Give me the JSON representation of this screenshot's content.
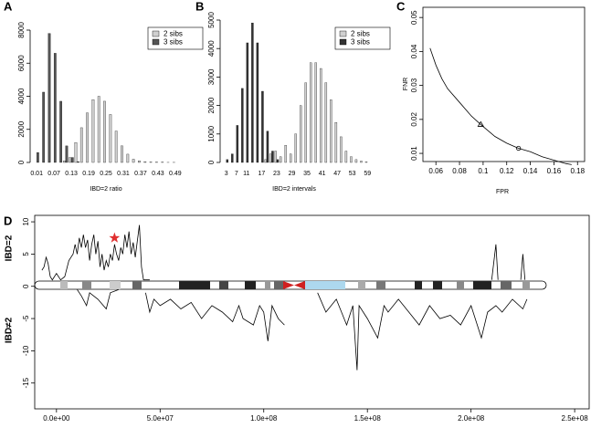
{
  "chart_data": [
    {
      "type": "bar",
      "label": "A",
      "x_label": "IBD=2 ratio",
      "legend": "top-right",
      "categories": [
        0.01,
        null,
        null,
        0.07,
        null,
        null,
        0.13,
        null,
        null,
        0.19,
        null,
        null,
        0.25,
        null,
        null,
        0.31,
        null,
        null,
        0.37,
        null,
        null,
        0.43,
        null,
        null,
        0.49
      ],
      "series": [
        {
          "name": "2 sibs",
          "color": "#d0d0d0",
          "values": [
            0,
            0,
            0,
            0,
            0,
            100,
            300,
            1200,
            2100,
            3000,
            3800,
            4000,
            3700,
            2900,
            1900,
            1000,
            500,
            200,
            100,
            50,
            30,
            20,
            10,
            5,
            5
          ]
        },
        {
          "name": "3 sibs",
          "color": "#555555",
          "values": [
            600,
            4250,
            7800,
            6600,
            3700,
            1000,
            300,
            50,
            0,
            0,
            0,
            0,
            0,
            0,
            0,
            0,
            0,
            0,
            0,
            0,
            0,
            0,
            0,
            0,
            0
          ]
        }
      ],
      "ylim": [
        0,
        8000
      ],
      "yticks": [
        0,
        2000,
        4000,
        6000,
        8000
      ]
    },
    {
      "type": "bar",
      "label": "B",
      "x_label": "IBD=2 intervals",
      "legend": "top-right",
      "categories": [
        3,
        null,
        7,
        null,
        11,
        null,
        null,
        17,
        null,
        null,
        23,
        null,
        null,
        29,
        null,
        null,
        35,
        null,
        null,
        41,
        null,
        null,
        47,
        null,
        null,
        53,
        null,
        null,
        59
      ],
      "series": [
        {
          "name": "2 sibs",
          "color": "#d0d0d0",
          "values": [
            0,
            0,
            0,
            0,
            0,
            0,
            0,
            0,
            100,
            300,
            400,
            200,
            600,
            300,
            1000,
            2000,
            2800,
            3500,
            3500,
            3300,
            2800,
            2200,
            1400,
            900,
            400,
            200,
            100,
            50,
            20
          ]
        },
        {
          "name": "3 sibs",
          "color": "#333333",
          "values": [
            100,
            300,
            1300,
            2600,
            4200,
            4900,
            4200,
            2500,
            1100,
            400,
            100,
            0,
            0,
            0,
            0,
            0,
            0,
            0,
            0,
            0,
            0,
            0,
            0,
            0,
            0,
            0,
            0,
            0,
            0
          ]
        }
      ],
      "ylim": [
        0,
        5000
      ],
      "yticks": [
        0,
        1000,
        2000,
        3000,
        4000,
        5000
      ]
    },
    {
      "type": "line",
      "label": "C",
      "x_label": "FPR",
      "y_label": "FNR",
      "series": [
        {
          "color": "#000000",
          "x": [
            0.055,
            0.06,
            0.065,
            0.07,
            0.08,
            0.09,
            0.098,
            0.11,
            0.12,
            0.13,
            0.14,
            0.15,
            0.16,
            0.17,
            0.175
          ],
          "values": [
            0.041,
            0.036,
            0.032,
            0.029,
            0.025,
            0.021,
            0.0185,
            0.015,
            0.013,
            0.0115,
            0.0105,
            0.009,
            0.008,
            0.007,
            0.0067
          ]
        }
      ],
      "points": [
        {
          "x": 0.098,
          "y": 0.0185,
          "shape": "triangle"
        },
        {
          "x": 0.13,
          "y": 0.0115,
          "shape": "circle"
        }
      ],
      "xlim": [
        0.049,
        0.186
      ],
      "xticks": [
        0.06,
        0.08,
        0.1,
        0.12,
        0.14,
        0.16,
        0.18
      ],
      "ylim": [
        0.0076,
        0.053
      ],
      "yticks": [
        0.01,
        0.02,
        0.03,
        0.04,
        0.05
      ]
    },
    {
      "type": "line",
      "label": "D",
      "y_labels": [
        "IBD=2",
        "IBD≠2"
      ],
      "series": [
        {
          "color": "#000000",
          "x": [
            -7000000.0,
            -6000000.0,
            -5000000.0,
            -4000000.0,
            -3000000.0,
            -2000000.0,
            0,
            2000000.0,
            4000000.0,
            6000000.0,
            8000000.0,
            9000000.0,
            10000000.0,
            11000000.0,
            12000000.0,
            13000000.0,
            14000000.0,
            15000000.0,
            16000000.0,
            17000000.0,
            18000000.0,
            19000000.0,
            20000000.0,
            21000000.0,
            22000000.0,
            23000000.0,
            24000000.0,
            25000000.0,
            26000000.0,
            27000000.0,
            28000000.0,
            29000000.0,
            30000000.0,
            31000000.0,
            32000000.0,
            33000000.0,
            34000000.0,
            35000000.0,
            36000000.0,
            37000000.0,
            38000000.0,
            39000000.0,
            40000000.0,
            41000000.0,
            42000000.0,
            45000000.0,
            100000000.0,
            210000000.0,
            212000000.0,
            213000000.0,
            218000000.0,
            224000000.0,
            225000000.0,
            226000000.0
          ],
          "values": [
            2.5,
            3,
            4.5,
            3.5,
            1.5,
            1,
            2,
            1,
            1.5,
            4,
            5,
            6.5,
            5,
            7.5,
            6,
            8,
            6,
            7.2,
            4,
            6.5,
            8,
            5,
            7,
            3,
            5,
            2.5,
            4,
            3,
            5,
            4,
            6.5,
            5,
            4,
            6,
            5,
            8,
            6,
            8.5,
            5,
            6.8,
            4.5,
            7,
            9.5,
            3,
            1,
            1,
            null,
            1,
            6.5,
            1,
            null,
            1,
            5,
            1
          ]
        },
        {
          "color": "#000000",
          "x": [
            10000000.0,
            12000000.0,
            14500000.0,
            16000000.0,
            20000000.0,
            24000000.0,
            26000000.0,
            30000000.0,
            null,
            43000000.0,
            45000000.0,
            47000000.0,
            50000000.0,
            55000000.0,
            60000000.0,
            65000000.0,
            70000000.0,
            75000000.0,
            80000000.0,
            85000000.0,
            88000000.0,
            90000000.0,
            95000000.0,
            98000000.0,
            100000000.0,
            102000000.0,
            104000000.0,
            107000000.0,
            110000000.0,
            118000000.0,
            126000000.0,
            130000000.0,
            135000000.0,
            140000000.0,
            143000000.0,
            145000000.0,
            146000000.0,
            150000000.0,
            155000000.0,
            158000000.0,
            160000000.0,
            165000000.0,
            170000000.0,
            175000000.0,
            180000000.0,
            185000000.0,
            190000000.0,
            195000000.0,
            200000000.0,
            205000000.0,
            208000000.0,
            212000000.0,
            215000000.0,
            220000000.0,
            225000000.0,
            227000000.0
          ],
          "values": [
            -0.5,
            -1.5,
            -3,
            -1,
            -2,
            -3.5,
            -1,
            -0.5,
            null,
            -1,
            -4,
            -2,
            -3,
            -2,
            -3.5,
            -2.5,
            -5,
            -3,
            -4,
            -5.5,
            -3,
            -5,
            -6,
            -3,
            -4,
            -8.5,
            -3,
            -5,
            -6,
            null,
            -1,
            -4,
            -2,
            -6,
            -3,
            -13,
            -3,
            -5,
            -8,
            -3,
            -4,
            -2,
            -4,
            -6,
            -3,
            -5,
            -4.5,
            -6,
            -3,
            -8,
            -4,
            -3,
            -4,
            -2,
            -3.5,
            -2
          ]
        }
      ],
      "points": [
        {
          "x": 28000000.0,
          "y": 7.5,
          "shape": "star",
          "color": "#e03030"
        }
      ],
      "xlim": [
        -10500000.0,
        257000000.0
      ],
      "xticks": [
        {
          "value": 0,
          "label": "0.0e+00"
        },
        {
          "value": 50000000.0,
          "label": "5.0e+07"
        },
        {
          "value": 100000000.0,
          "label": "1.0e+08"
        },
        {
          "value": 150000000.0,
          "label": "1.5e+08"
        },
        {
          "value": 200000000.0,
          "label": "2.0e+08"
        },
        {
          "value": 250000000.0,
          "label": "2.5e+08"
        }
      ],
      "ylim": [
        -19,
        11
      ],
      "yticks": [
        -15,
        -10,
        -5,
        0,
        5,
        10
      ]
    }
  ]
}
